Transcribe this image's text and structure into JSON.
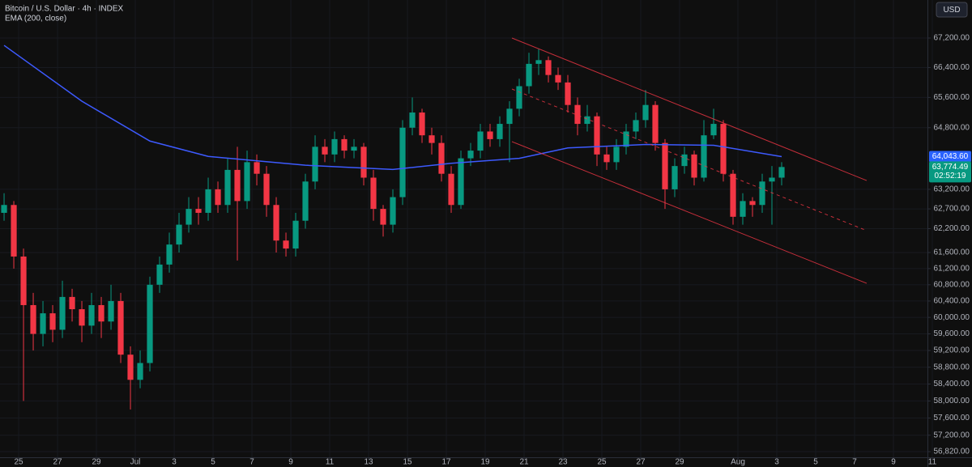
{
  "chart_data": {
    "type": "candlestick",
    "title": "Bitcoin / U.S. Dollar · 4h · INDEX",
    "indicator": "EMA (200, close)",
    "currency": "USD",
    "up_color": "#089981",
    "down_color": "#f23645",
    "log_scale": true,
    "grid": true,
    "ylim": [
      56690,
      68245
    ],
    "yticks": [
      {
        "value": 67200,
        "label": "67,200.00"
      },
      {
        "value": 66400,
        "label": "66,400.00"
      },
      {
        "value": 65600,
        "label": "65,600.00"
      },
      {
        "value": 64800,
        "label": "64,800.00"
      },
      {
        "value": 63200,
        "label": "63,200.00"
      },
      {
        "value": 62700,
        "label": "62,700.00"
      },
      {
        "value": 62200,
        "label": "62,200.00"
      },
      {
        "value": 61600,
        "label": "61,600.00"
      },
      {
        "value": 61200,
        "label": "61,200.00"
      },
      {
        "value": 60800,
        "label": "60,800.00"
      },
      {
        "value": 60400,
        "label": "60,400.00"
      },
      {
        "value": 60000,
        "label": "60,000.00"
      },
      {
        "value": 59600,
        "label": "59,600.00"
      },
      {
        "value": 59200,
        "label": "59,200.00"
      },
      {
        "value": 58800,
        "label": "58,800.00"
      },
      {
        "value": 58400,
        "label": "58,400.00"
      },
      {
        "value": 58000,
        "label": "58,000.00"
      },
      {
        "value": 57600,
        "label": "57,600.00"
      },
      {
        "value": 57200,
        "label": "57,200.00"
      },
      {
        "value": 56820,
        "label": "56,820.00"
      }
    ],
    "xlim": [
      -6.96,
      40.75
    ],
    "xticks": [
      {
        "value": -6,
        "label": "25"
      },
      {
        "value": -4,
        "label": "27"
      },
      {
        "value": -2,
        "label": "29"
      },
      {
        "value": 0,
        "label": "Jul"
      },
      {
        "value": 2,
        "label": "3"
      },
      {
        "value": 4,
        "label": "5"
      },
      {
        "value": 6,
        "label": "7"
      },
      {
        "value": 8,
        "label": "9"
      },
      {
        "value": 10,
        "label": "11"
      },
      {
        "value": 12,
        "label": "13"
      },
      {
        "value": 14,
        "label": "15"
      },
      {
        "value": 16,
        "label": "17"
      },
      {
        "value": 18,
        "label": "19"
      },
      {
        "value": 20,
        "label": "21"
      },
      {
        "value": 22,
        "label": "23"
      },
      {
        "value": 24,
        "label": "25"
      },
      {
        "value": 26,
        "label": "27"
      },
      {
        "value": 28,
        "label": "29"
      },
      {
        "value": 31,
        "label": "Aug"
      },
      {
        "value": 33,
        "label": "3"
      },
      {
        "value": 35,
        "label": "5"
      },
      {
        "value": 37,
        "label": "7"
      },
      {
        "value": 39,
        "label": "9"
      },
      {
        "value": 41,
        "label": "11"
      }
    ],
    "x": [
      -6.75,
      -6.25,
      -5.75,
      -5.25,
      -4.75,
      -4.25,
      -3.75,
      -3.25,
      -2.75,
      -2.25,
      -1.75,
      -1.25,
      -0.75,
      -0.25,
      0.25,
      0.75,
      1.25,
      1.75,
      2.25,
      2.75,
      3.25,
      3.75,
      4.25,
      4.75,
      5.25,
      5.75,
      6.25,
      6.75,
      7.25,
      7.75,
      8.25,
      8.75,
      9.25,
      9.75,
      10.25,
      10.75,
      11.25,
      11.75,
      12.25,
      12.75,
      13.25,
      13.75,
      14.25,
      14.75,
      15.25,
      15.75,
      16.25,
      16.75,
      17.25,
      17.75,
      18.25,
      18.75,
      19.25,
      19.75,
      20.25,
      20.75,
      21.25,
      21.75,
      22.25,
      22.75,
      23.25,
      23.75,
      24.25,
      24.75,
      25.25,
      25.75,
      26.25,
      26.75,
      27.25,
      27.75,
      28.25,
      28.75,
      29.25,
      29.75,
      30.25,
      30.75,
      31.25,
      31.75,
      32.25,
      32.75,
      33.25
    ],
    "open": [
      62600,
      62800,
      61500,
      60300,
      59600,
      60100,
      59700,
      60500,
      60200,
      59800,
      60300,
      59900,
      60400,
      59100,
      58500,
      58900,
      60800,
      61300,
      61800,
      62300,
      62700,
      62600,
      63200,
      62800,
      63700,
      62900,
      63900,
      63600,
      62800,
      61900,
      61700,
      62400,
      63400,
      64300,
      64100,
      64500,
      64200,
      64300,
      63500,
      62700,
      62300,
      63000,
      64800,
      65200,
      64600,
      64400,
      63600,
      62800,
      64000,
      64200,
      64700,
      64500,
      64900,
      65300,
      65900,
      66500,
      66600,
      66200,
      66000,
      65400,
      64900,
      65100,
      64100,
      63900,
      64300,
      64700,
      65000,
      65400,
      64400,
      63200,
      63800,
      64100,
      63500,
      64600,
      64900,
      63600,
      62500,
      62900,
      62800,
      63400,
      63500
    ],
    "high": [
      63100,
      62900,
      61700,
      60600,
      60400,
      60300,
      60900,
      60700,
      60400,
      60600,
      60500,
      60800,
      60600,
      59300,
      59200,
      61000,
      61500,
      62100,
      62600,
      63000,
      63000,
      63500,
      63400,
      64000,
      64300,
      64200,
      64100,
      63800,
      63000,
      62100,
      62600,
      63600,
      64600,
      64500,
      64700,
      64600,
      64500,
      64400,
      63700,
      62800,
      63200,
      65000,
      65600,
      65300,
      64800,
      64600,
      63800,
      64200,
      64400,
      64900,
      64900,
      65100,
      65500,
      66100,
      66800,
      66900,
      66700,
      66400,
      66200,
      65600,
      65400,
      65200,
      64300,
      64500,
      64900,
      65200,
      65800,
      65500,
      64500,
      64000,
      64300,
      64200,
      65000,
      65300,
      65000,
      63700,
      63100,
      63000,
      63600,
      63800,
      63900
    ],
    "low": [
      62400,
      61200,
      58000,
      59200,
      59300,
      59400,
      59500,
      59900,
      59400,
      59600,
      59500,
      59700,
      58900,
      57800,
      58300,
      58700,
      60600,
      61100,
      61600,
      62100,
      62300,
      62400,
      62600,
      62600,
      61400,
      62700,
      63300,
      62500,
      61600,
      61500,
      61500,
      62200,
      63200,
      63900,
      63900,
      64000,
      64000,
      63300,
      62400,
      62000,
      62100,
      62800,
      64600,
      64400,
      64100,
      63400,
      62600,
      62700,
      63800,
      64000,
      64300,
      64300,
      63900,
      65100,
      65700,
      66200,
      66000,
      65800,
      65200,
      64600,
      64700,
      63800,
      63700,
      63700,
      64100,
      64500,
      64800,
      64200,
      62700,
      63000,
      63600,
      63300,
      63400,
      64500,
      63400,
      62300,
      62300,
      62500,
      62600,
      62300,
      63300
    ],
    "close": [
      62800,
      61500,
      60300,
      59600,
      60100,
      59700,
      60500,
      60200,
      59800,
      60300,
      59900,
      60400,
      59100,
      58500,
      58900,
      60800,
      61300,
      61800,
      62300,
      62700,
      62600,
      63200,
      62800,
      63700,
      62900,
      63900,
      63600,
      62800,
      61900,
      61700,
      62400,
      63400,
      64300,
      64100,
      64500,
      64200,
      64300,
      63500,
      62700,
      62300,
      63000,
      64800,
      65200,
      64600,
      64400,
      63600,
      62800,
      64000,
      64200,
      64700,
      64500,
      64900,
      65300,
      65900,
      66500,
      66600,
      66200,
      66000,
      65400,
      64900,
      65100,
      64100,
      63900,
      64300,
      64700,
      65000,
      65400,
      64400,
      63200,
      63800,
      64100,
      63500,
      64600,
      64900,
      63600,
      62500,
      62900,
      62800,
      63400,
      63500,
      63774.49
    ],
    "ema": {
      "color": "#3d5afe",
      "x": [
        -6.75,
        -2.75,
        0.75,
        3.75,
        8.75,
        13.25,
        16.25,
        19.75,
        22.25,
        26.25,
        29.75,
        33.25
      ],
      "values": [
        67000,
        65500,
        64450,
        64050,
        63820,
        63710,
        63870,
        64000,
        64270,
        64360,
        64340,
        64043.6
      ]
    },
    "channel": [
      {
        "color": "#f23645",
        "dashed": false,
        "x": [
          19.375,
          37.625
        ],
        "values": [
          67200,
          63425
        ]
      },
      {
        "color": "#f23645",
        "dashed": true,
        "x": [
          19.375,
          37.625
        ],
        "values": [
          65824,
          62150
        ]
      },
      {
        "color": "#f23645",
        "dashed": false,
        "x": [
          19.375,
          37.625
        ],
        "values": [
          64434,
          60835
        ]
      }
    ],
    "ema_price": {
      "value": 64043.6,
      "label": "64,043.60"
    },
    "last_price": {
      "value": 63774.49,
      "label": "63,774.49"
    },
    "countdown": "02:52:19"
  }
}
